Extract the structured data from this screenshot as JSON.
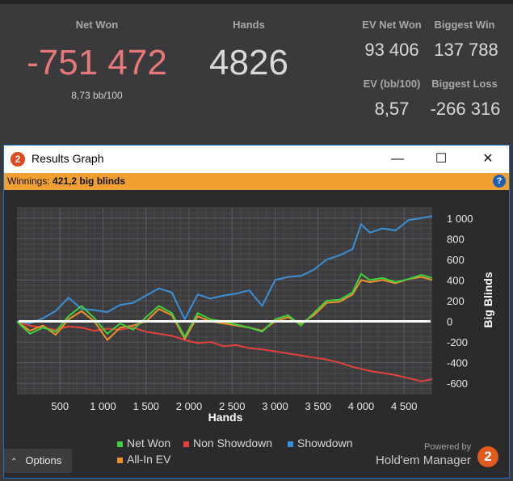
{
  "stats": {
    "net_won_label": "Net Won",
    "net_won_value": "-751 472",
    "net_won_sub": "8,73 bb/100",
    "hands_label": "Hands",
    "hands_value": "4826",
    "ev_net_won_label": "EV Net Won",
    "ev_net_won_value": "93 406",
    "biggest_win_label": "Biggest Win",
    "biggest_win_value": "137 788",
    "ev_bb_label": "EV (bb/100)",
    "ev_bb_value": "8,57",
    "biggest_loss_label": "Biggest Loss",
    "biggest_loss_value": "-266 316"
  },
  "window": {
    "title": "Results Graph",
    "logo_text": "2",
    "minimize": "—",
    "maximize": "☐",
    "close": "✕",
    "help": "?"
  },
  "infobar": {
    "label": "Winnings:",
    "value": "421,2 big blinds"
  },
  "options_label": "Options",
  "powered_by": "Powered by",
  "brand": "Hold'em Manager",
  "brand_logo": "2",
  "chart_data": {
    "type": "line",
    "xlabel": "Hands",
    "ylabel": "Big Blinds",
    "xlim": [
      0,
      4826
    ],
    "ylim": [
      -700,
      1100
    ],
    "x_ticks": [
      500,
      1000,
      1500,
      2000,
      2500,
      3000,
      3500,
      4000,
      4500
    ],
    "x_tick_labels": [
      "500",
      "1 000",
      "1 500",
      "2 000",
      "2 500",
      "3 000",
      "3 500",
      "4 000",
      "4 500"
    ],
    "y_ticks": [
      1000,
      800,
      600,
      400,
      200,
      0,
      -200,
      -400,
      -600
    ],
    "y_tick_labels": [
      "1 000",
      "800",
      "600",
      "400",
      "200",
      "0",
      "-200",
      "-400",
      "-600"
    ],
    "grid": true,
    "legend_position": "bottom",
    "series": [
      {
        "name": "Net Won",
        "color": "#3cd23c",
        "x": [
          0,
          150,
          300,
          450,
          600,
          750,
          900,
          1050,
          1200,
          1350,
          1500,
          1650,
          1800,
          1950,
          2100,
          2250,
          2400,
          2550,
          2700,
          2850,
          3000,
          3150,
          3300,
          3450,
          3600,
          3750,
          3900,
          4000,
          4100,
          4250,
          4400,
          4550,
          4700,
          4826
        ],
        "values": [
          0,
          -120,
          -60,
          -100,
          50,
          150,
          30,
          -120,
          -20,
          -80,
          40,
          150,
          80,
          -150,
          80,
          20,
          0,
          -30,
          -60,
          -100,
          20,
          60,
          -40,
          80,
          200,
          210,
          280,
          460,
          400,
          420,
          380,
          410,
          450,
          420
        ]
      },
      {
        "name": "Non Showdown",
        "color": "#e6403a",
        "x": [
          0,
          150,
          300,
          450,
          600,
          750,
          900,
          1050,
          1200,
          1350,
          1500,
          1650,
          1800,
          1950,
          2100,
          2250,
          2400,
          2550,
          2700,
          2850,
          3000,
          3150,
          3300,
          3450,
          3600,
          3750,
          3900,
          4000,
          4100,
          4250,
          4400,
          4550,
          4700,
          4826
        ],
        "values": [
          0,
          -40,
          -60,
          -80,
          -50,
          -60,
          -90,
          -70,
          -80,
          -60,
          -100,
          -120,
          -140,
          -180,
          -210,
          -200,
          -240,
          -230,
          -260,
          -270,
          -290,
          -310,
          -330,
          -350,
          -370,
          -400,
          -440,
          -460,
          -480,
          -500,
          -520,
          -550,
          -580,
          -560
        ]
      },
      {
        "name": "Showdown",
        "color": "#3a8fd6",
        "x": [
          0,
          150,
          300,
          450,
          600,
          750,
          900,
          1050,
          1200,
          1350,
          1500,
          1650,
          1800,
          1950,
          2100,
          2250,
          2400,
          2550,
          2700,
          2850,
          3000,
          3150,
          3300,
          3450,
          3600,
          3750,
          3900,
          4000,
          4100,
          4250,
          4400,
          4550,
          4700,
          4826
        ],
        "values": [
          0,
          -20,
          30,
          100,
          230,
          120,
          110,
          90,
          160,
          180,
          250,
          320,
          280,
          20,
          260,
          220,
          250,
          270,
          300,
          150,
          400,
          430,
          440,
          500,
          600,
          640,
          700,
          940,
          860,
          900,
          880,
          980,
          1000,
          1020
        ]
      },
      {
        "name": "All-In EV",
        "color": "#f0902c",
        "x": [
          0,
          150,
          300,
          450,
          600,
          750,
          900,
          1050,
          1200,
          1350,
          1500,
          1650,
          1800,
          1950,
          2100,
          2250,
          2400,
          2550,
          2700,
          2850,
          3000,
          3150,
          3300,
          3450,
          3600,
          3750,
          3900,
          4000,
          4100,
          4250,
          4400,
          4550,
          4700,
          4826
        ],
        "values": [
          0,
          -90,
          -40,
          -130,
          20,
          100,
          0,
          -180,
          -60,
          -40,
          0,
          120,
          60,
          -170,
          50,
          0,
          -20,
          -40,
          -60,
          -90,
          0,
          40,
          -20,
          60,
          180,
          190,
          260,
          400,
          380,
          400,
          370,
          410,
          430,
          400
        ]
      }
    ]
  }
}
